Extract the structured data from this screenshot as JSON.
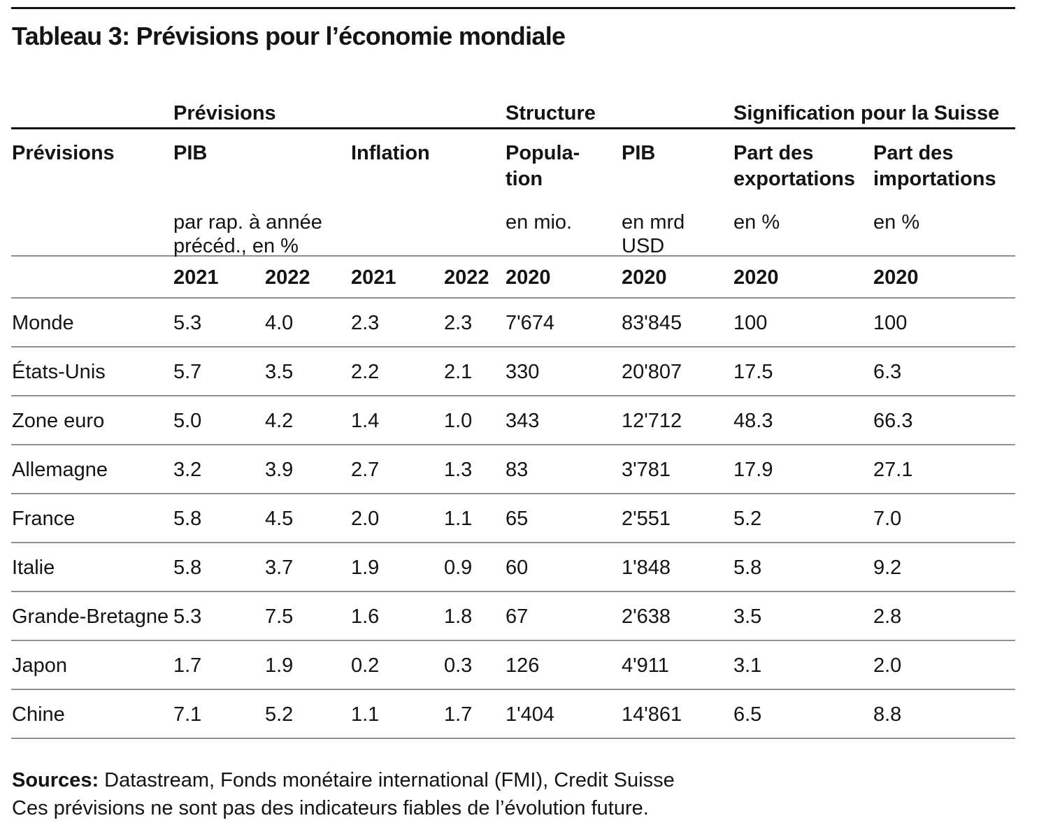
{
  "title": "Tableau 3: Prévisions pour l’économie mondiale",
  "table": {
    "group_headers": [
      {
        "label": "Prévisions"
      },
      {
        "label": "Structure"
      },
      {
        "label": "Signification pour la Suisse"
      }
    ],
    "columns": [
      {
        "name": "Prévisions",
        "sub": ""
      },
      {
        "name": "PIB",
        "sub": "par rap. à année\nprécéd., en %"
      },
      {
        "name": "Inflation",
        "sub": ""
      },
      {
        "name": "Popula-\ntion",
        "sub": "en mio."
      },
      {
        "name": "PIB",
        "sub": "en mrd USD"
      },
      {
        "name": "Part des\nexportations",
        "sub": "en %"
      },
      {
        "name": "Part des\nimportations",
        "sub": "en %"
      }
    ],
    "years": [
      "2021",
      "2022",
      "2021",
      "2022",
      "2020",
      "2020",
      "2020",
      "2020"
    ],
    "rows": [
      {
        "label": "Monde",
        "values": [
          "5.3",
          "4.0",
          "2.3",
          "2.3",
          "7'674",
          "83'845",
          "100",
          "100"
        ]
      },
      {
        "label": "États-Unis",
        "values": [
          "5.7",
          "3.5",
          "2.2",
          "2.1",
          "330",
          "20'807",
          "17.5",
          "6.3"
        ]
      },
      {
        "label": "Zone euro",
        "values": [
          "5.0",
          "4.2",
          "1.4",
          "1.0",
          "343",
          "12'712",
          "48.3",
          "66.3"
        ]
      },
      {
        "label": "Allemagne",
        "values": [
          "3.2",
          "3.9",
          "2.7",
          "1.3",
          "83",
          "3'781",
          "17.9",
          "27.1"
        ]
      },
      {
        "label": "France",
        "values": [
          "5.8",
          "4.5",
          "2.0",
          "1.1",
          "65",
          "2'551",
          "5.2",
          "7.0"
        ]
      },
      {
        "label": "Italie",
        "values": [
          "5.8",
          "3.7",
          "1.9",
          "0.9",
          "60",
          "1'848",
          "5.8",
          "9.2"
        ]
      },
      {
        "label": "Grande-Bretagne",
        "values": [
          "5.3",
          "7.5",
          "1.6",
          "1.8",
          "67",
          "2'638",
          "3.5",
          "2.8"
        ]
      },
      {
        "label": "Japon",
        "values": [
          "1.7",
          "1.9",
          "0.2",
          "0.3",
          "126",
          "4'911",
          "3.1",
          "2.0"
        ]
      },
      {
        "label": "Chine",
        "values": [
          "7.1",
          "5.2",
          "1.1",
          "1.7",
          "1'404",
          "14'861",
          "6.5",
          "8.8"
        ]
      }
    ]
  },
  "footer": {
    "sources_label": "Sources:",
    "sources_text": " Datastream, Fonds monétaire international (FMI), Credit Suisse",
    "disclaimer": "Ces prévisions ne sont pas des indicateurs fiables de l’évolution future."
  }
}
